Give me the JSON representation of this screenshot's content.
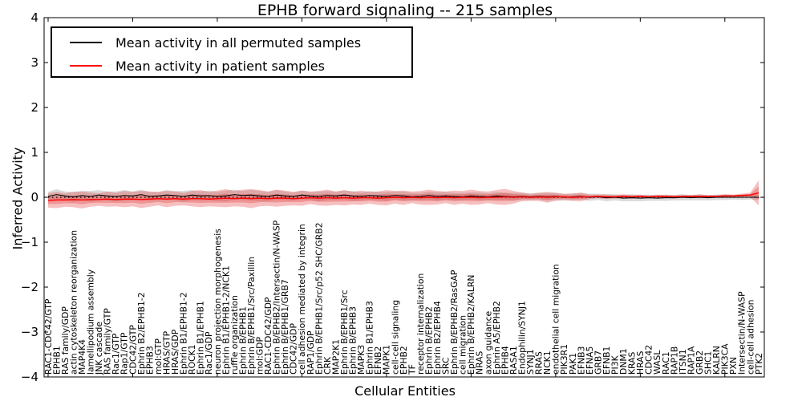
{
  "chart_data": {
    "type": "line",
    "title": "EPHB forward signaling -- 215 samples",
    "xlabel": "Cellular Entities",
    "ylabel": "Inferred Activity",
    "ylim": [
      -4,
      4
    ],
    "yticks": [
      "4",
      "3",
      "2",
      "1",
      "0",
      "−1",
      "−2",
      "−3",
      "−4"
    ],
    "ytick_values": [
      4,
      3,
      2,
      1,
      0,
      -1,
      -2,
      -3,
      -4
    ],
    "grid": false,
    "legend_position": "upper left",
    "colors": {
      "permuted_line": "#000000",
      "patient_line": "#ff0000",
      "patient_band": "#e03030",
      "permuted_band": "#999999",
      "zero_line": "#000000"
    },
    "legend": [
      {
        "label": "Mean activity in all permuted samples",
        "color": "#000000"
      },
      {
        "label": "Mean activity in patient samples",
        "color": "#ff0000"
      }
    ],
    "categories": [
      "RAC1-CDC42/GTP",
      "EPHB1",
      "RAS family/GDP",
      "actin cytoskeleton reorganization",
      "MAP4K4",
      "lamellipodium assembly",
      "JNK cascade",
      "RAS family/GTP",
      "Rac1/GTP",
      "Rap1/GTP",
      "CDC42/GTP",
      "Ephrin B2/EPHB1-2",
      "EPHB3",
      "mol:GTP",
      "HRAS/GTP",
      "HRAS/GDP",
      "Ephrin B1/EPHB1-2",
      "ROCK1",
      "Ephrin B1/EPHB1",
      "Rac1/GDP",
      "neuron projection morphogenesis",
      "Ephrin B1/EPHB1-2/NCK1",
      "ruffle organization",
      "Ephrin B/EPHB1",
      "Ephrin B/EPHB1/Src/Paxillin",
      "mol:GDP",
      "RAC1-CDC42/GDP",
      "Ephrin B/EPHB2/Intersectin/N-WASP",
      "Ephrin B/EPHB1/GRB7",
      "CDC42/GDP",
      "cell adhesion mediated by integrin",
      "RAP1/GDP",
      "Ephrin B/EPHB1/Src/p52 SHC/GRB2",
      "CRK",
      "MAP2K1",
      "Ephrin B/EPHB1/Src",
      "Ephrin B/EPHB3",
      "MAPK3",
      "Ephrin B1/EPHB3",
      "EFNB2",
      "MAPK1",
      "cell-cell signaling",
      "EPHB2",
      "TF",
      "receptor internalization",
      "Ephrin B/EPHB2",
      "Ephrin B2/EPHB4",
      "SRC",
      "Ephrin B/EPHB2/RasGAP",
      "cell migration",
      "Ephrin B/EPHB2/KALRN",
      "NRAS",
      "axon guidance",
      "Ephrin A5/EPHB2",
      "EPHB4",
      "RASA1",
      "Endophilin/SYNJ1",
      "SYNJ1",
      "RRAS",
      "NCK1",
      "endothelial cell migration",
      "PIK3R1",
      "PAK1",
      "EFNB3",
      "EFNA5",
      "GRB7",
      "EFNB1",
      "PI3K",
      "DNM1",
      "KRAS",
      "HRAS",
      "CDC42",
      "WASL",
      "RAC1",
      "RAP1B",
      "ITSN1",
      "RAP1A",
      "GRB2",
      "SHC1",
      "KALRN",
      "PIK3CA",
      "PXN",
      "Intersectin/N-WASP",
      "cell-cell adhesion",
      "PTK2"
    ],
    "series": [
      {
        "name": "Mean activity in all permuted samples",
        "color": "#000000",
        "values": [
          0.02,
          0.06,
          0.03,
          0.01,
          0.04,
          0.02,
          0.05,
          0.03,
          0.02,
          0.04,
          0.03,
          0.06,
          0.02,
          0.03,
          0.05,
          0.04,
          0.02,
          0.05,
          0.03,
          0.04,
          0.02,
          0.03,
          0.06,
          0.04,
          0.05,
          0.03,
          0.02,
          0.05,
          0.03,
          0.02,
          0.05,
          0.03,
          0.02,
          0.04,
          0.03,
          0.05,
          0.03,
          0.02,
          0.04,
          0.03,
          0.02,
          0.04,
          0.03,
          0.01,
          0.02,
          0.04,
          0.02,
          0.03,
          0.02,
          0.01,
          0.03,
          0.02,
          0.01,
          0.03,
          0.02,
          0.01,
          0.02,
          0.01,
          0.02,
          0.01,
          0.02,
          0.0,
          0.01,
          0.02,
          0.0,
          0.01,
          -0.01,
          0.0,
          -0.02,
          -0.01,
          -0.02,
          -0.01,
          -0.02,
          -0.01,
          -0.01,
          0.0,
          -0.01,
          0.0,
          -0.01,
          0.0,
          0.0,
          0.0,
          0.0,
          0.0,
          0.0
        ]
      },
      {
        "name": "Mean activity in patient samples",
        "color": "#ff0000",
        "values": [
          -0.07,
          -0.06,
          -0.06,
          -0.05,
          -0.06,
          -0.05,
          -0.05,
          -0.04,
          -0.05,
          -0.04,
          -0.04,
          -0.05,
          -0.04,
          -0.03,
          -0.04,
          -0.03,
          -0.04,
          -0.03,
          -0.03,
          -0.04,
          -0.03,
          -0.02,
          -0.03,
          -0.02,
          -0.03,
          -0.02,
          -0.03,
          -0.02,
          -0.02,
          -0.03,
          -0.02,
          -0.01,
          -0.02,
          -0.01,
          -0.02,
          -0.01,
          -0.02,
          -0.01,
          -0.01,
          -0.02,
          -0.01,
          0.0,
          -0.01,
          0.0,
          -0.01,
          0.0,
          -0.01,
          0.0,
          -0.01,
          0.0,
          0.0,
          -0.01,
          0.0,
          0.0,
          0.01,
          0.0,
          0.01,
          0.0,
          0.01,
          0.0,
          0.01,
          0.01,
          0.0,
          0.01,
          0.01,
          0.02,
          0.01,
          0.01,
          0.02,
          0.01,
          0.02,
          0.01,
          0.02,
          0.02,
          0.01,
          0.02,
          0.02,
          0.02,
          0.02,
          0.02,
          0.03,
          0.03,
          0.04,
          0.05,
          0.1
        ]
      }
    ],
    "bands": [
      {
        "name": "permuted-std-band",
        "center_series": 0,
        "color": "#999999",
        "opacity": 0.35,
        "half_widths": [
          0.1,
          0.12,
          0.1,
          0.11,
          0.1,
          0.12,
          0.11,
          0.1,
          0.11,
          0.12,
          0.1,
          0.11,
          0.1,
          0.09,
          0.11,
          0.1,
          0.12,
          0.11,
          0.1,
          0.11,
          0.1,
          0.12,
          0.11,
          0.1,
          0.12,
          0.11,
          0.1,
          0.11,
          0.1,
          0.09,
          0.1,
          0.09,
          0.11,
          0.1,
          0.09,
          0.1,
          0.11,
          0.09,
          0.1,
          0.09,
          0.1,
          0.09,
          0.1,
          0.09,
          0.08,
          0.09,
          0.1,
          0.09,
          0.08,
          0.09,
          0.08,
          0.09,
          0.08,
          0.09,
          0.08,
          0.09,
          0.08,
          0.07,
          0.08,
          0.09,
          0.08,
          0.07,
          0.08,
          0.07,
          0.08,
          0.07,
          0.08,
          0.07,
          0.07,
          0.08,
          0.07,
          0.07,
          0.06,
          0.07,
          0.06,
          0.07,
          0.06,
          0.07,
          0.06,
          0.06,
          0.06,
          0.05,
          0.06,
          0.05,
          0.06
        ]
      },
      {
        "name": "patient-std-band",
        "center_series": 1,
        "color": "#e03030",
        "opacity": 0.3,
        "inner_ratio": 0.5,
        "half_widths": [
          0.16,
          0.18,
          0.15,
          0.17,
          0.19,
          0.16,
          0.14,
          0.17,
          0.15,
          0.18,
          0.16,
          0.19,
          0.17,
          0.15,
          0.18,
          0.16,
          0.14,
          0.17,
          0.19,
          0.16,
          0.18,
          0.2,
          0.17,
          0.19,
          0.21,
          0.18,
          0.16,
          0.19,
          0.17,
          0.15,
          0.17,
          0.14,
          0.16,
          0.18,
          0.15,
          0.17,
          0.14,
          0.16,
          0.13,
          0.15,
          0.17,
          0.14,
          0.16,
          0.13,
          0.15,
          0.17,
          0.15,
          0.13,
          0.16,
          0.14,
          0.17,
          0.15,
          0.13,
          0.16,
          0.18,
          0.14,
          0.1,
          0.08,
          0.09,
          0.12,
          0.09,
          0.07,
          0.08,
          0.1,
          0.05,
          0.04,
          0.05,
          0.04,
          0.05,
          0.04,
          0.04,
          0.03,
          0.04,
          0.03,
          0.04,
          0.03,
          0.03,
          0.04,
          0.03,
          0.03,
          0.04,
          0.03,
          0.04,
          0.05,
          0.28
        ]
      }
    ],
    "zero_line": {
      "value": 0,
      "style": "dotted",
      "color": "#000000"
    }
  }
}
